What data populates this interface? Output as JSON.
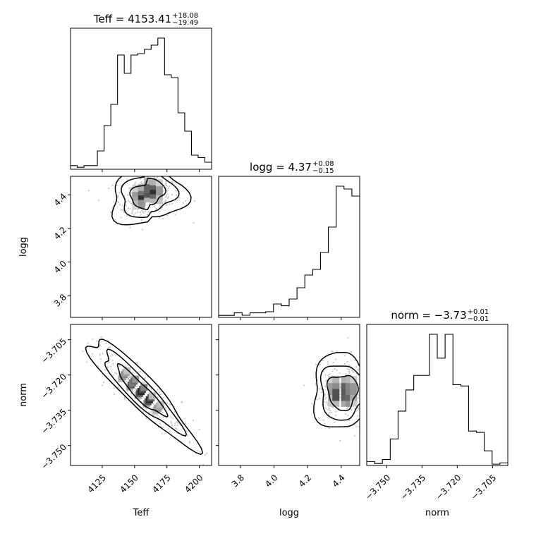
{
  "chart_data": {
    "type": "corner",
    "parameters": [
      "Teff",
      "logg",
      "norm"
    ],
    "axis_labels": {
      "Teff": "Teff",
      "logg": "logg",
      "norm": "norm"
    },
    "titles": [
      {
        "param": "Teff",
        "prefix": "Teff = ",
        "value": "4153.41",
        "plus": "+18.08",
        "minus": "−19.49"
      },
      {
        "param": "logg",
        "prefix": "logg = ",
        "value": "4.37",
        "plus": "+0.08",
        "minus": "−0.15"
      },
      {
        "param": "norm",
        "prefix": "norm = ",
        "value": "−3.73",
        "plus": "+0.01",
        "minus": "−0.01"
      }
    ],
    "ranges": {
      "Teff": [
        4100.5,
        4209.5
      ],
      "logg": [
        3.67,
        4.51
      ],
      "norm": [
        -3.7585,
        -3.6985
      ]
    },
    "ticks": {
      "Teff": {
        "values": [
          4125,
          4150,
          4175,
          4200
        ],
        "labels": [
          "4125",
          "4150",
          "4175",
          "4200"
        ]
      },
      "logg": {
        "values": [
          3.8,
          4.0,
          4.2,
          4.4
        ],
        "labels": [
          "3.8",
          "4.0",
          "4.2",
          "4.4"
        ]
      },
      "norm": {
        "values": [
          -3.75,
          -3.735,
          -3.72,
          -3.705
        ],
        "labels": [
          "−3.750",
          "−3.735",
          "−3.720",
          "−3.705"
        ]
      }
    },
    "histograms": {
      "Teff": [
        0.026,
        0.014,
        0.026,
        0.026,
        0.13,
        0.31,
        0.46,
        0.81,
        0.68,
        0.81,
        0.82,
        0.85,
        0.88,
        0.93,
        0.67,
        0.65,
        0.4,
        0.27,
        0.1,
        0.083,
        0.05
      ],
      "logg": [
        0.014,
        0.014,
        0.032,
        0.015,
        0.032,
        0.032,
        0.04,
        0.095,
        0.082,
        0.13,
        0.21,
        0.3,
        0.34,
        0.46,
        0.64,
        0.93,
        0.91,
        0.86
      ],
      "norm": [
        0.03,
        0.015,
        0.045,
        0.2,
        0.41,
        0.57,
        0.68,
        0.68,
        0.99,
        0.81,
        0.99,
        0.61,
        0.6,
        0.26,
        0.25,
        0.11,
        0.01,
        0.02
      ]
    },
    "density_peaks": {
      "logg_vs_Teff": {
        "x": 4160,
        "y": 4.43
      },
      "norm_vs_Teff": {
        "x": 4155,
        "y": -3.727
      },
      "norm_vs_logg": {
        "x": 4.42,
        "y": -3.727
      }
    }
  }
}
